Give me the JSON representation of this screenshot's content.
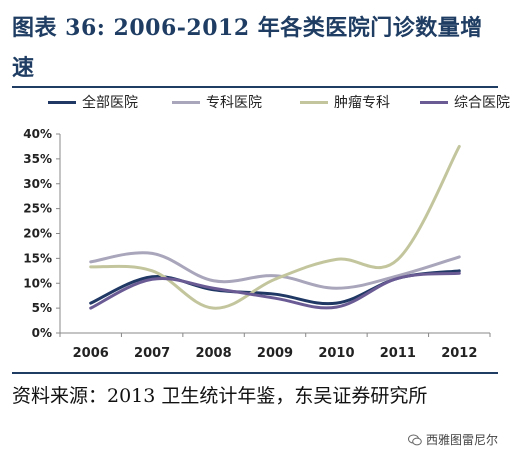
{
  "header": {
    "title": "图表 36: 2006-2012 年各类医院门诊数量增速"
  },
  "source": {
    "text": "资料来源：2013 卫生统计年鉴，东吴证券研究所"
  },
  "watermark": {
    "text": "西雅图雷尼尔",
    "icon": "wechat-icon"
  },
  "colors": {
    "全部医院": "#1f3864",
    "专科医院": "#a9a5bb",
    "肿瘤专科": "#c3c69d",
    "综合医院": "#6b5b95"
  },
  "chart_data": {
    "type": "line",
    "title": "",
    "xlabel": "",
    "ylabel": "",
    "categories": [
      "2006",
      "2007",
      "2008",
      "2009",
      "2010",
      "2011",
      "2012"
    ],
    "ylim": [
      0,
      40
    ],
    "yticks": [
      "0%",
      "5%",
      "10%",
      "15%",
      "20%",
      "25%",
      "30%",
      "35%",
      "40%"
    ],
    "y_unit": "%",
    "grid": false,
    "legend_position": "top",
    "series": [
      {
        "name": "全部医院",
        "values": [
          6.0,
          11.3,
          8.7,
          7.8,
          6.0,
          11.0,
          12.5
        ]
      },
      {
        "name": "专科医院",
        "values": [
          14.3,
          16.0,
          10.5,
          11.5,
          9.0,
          11.5,
          15.3
        ]
      },
      {
        "name": "肿瘤专科",
        "values": [
          13.3,
          12.5,
          5.0,
          10.8,
          14.8,
          14.8,
          37.5
        ]
      },
      {
        "name": "综合医院",
        "values": [
          5.0,
          10.8,
          9.0,
          7.0,
          5.2,
          11.0,
          12.0
        ]
      }
    ]
  }
}
